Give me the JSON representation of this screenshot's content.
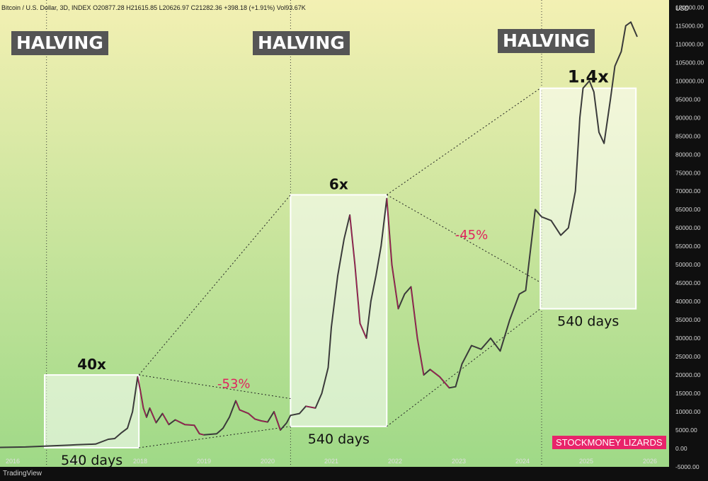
{
  "header": {
    "symbol_text": "Bitcoin / U.S. Dollar, 3D, INDEX",
    "ohlc_text": "O20877.28  H21615.85  L20626.97  C21282.36  +398.18 (+1.91%)  Vol93.67K",
    "currency": "USD"
  },
  "footer": {
    "platform": "TradingView"
  },
  "halving_labels": [
    "HALVING",
    "HALVING",
    "HALVING"
  ],
  "branding": "STOCKMONEY LIZARDS",
  "colors": {
    "background_top": "#f3f0b3",
    "background_bottom": "#9fd987",
    "price_line": "#3a3a3a",
    "correction_line": "#c0185a",
    "percent_text": "#e0245e",
    "box_fill": "#ffffff",
    "axis_bg": "#0f0f0f",
    "brand": "#e8246a"
  },
  "chart_data": {
    "type": "line",
    "title": "",
    "ylabel": "",
    "xlabel": "",
    "x_ticks": [
      "2016",
      "2017",
      "2018",
      "2019",
      "2020",
      "2021",
      "2022",
      "2023",
      "2024",
      "2025",
      "2026"
    ],
    "y_ticks": [
      "120000.00",
      "115000.00",
      "110000.00",
      "105000.00",
      "100000.00",
      "95000.00",
      "90000.00",
      "85000.00",
      "80000.00",
      "75000.00",
      "70000.00",
      "65000.00",
      "60000.00",
      "55000.00",
      "50000.00",
      "45000.00",
      "40000.00",
      "35000.00",
      "30000.00",
      "25000.00",
      "20000.00",
      "15000.00",
      "10000.00",
      "5000.00",
      "0.00",
      "-5000.00"
    ],
    "ylim": [
      -5000,
      122000
    ],
    "xlim": [
      2015.8,
      2026.3
    ],
    "halving_dates": [
      2016.53,
      2020.36,
      2024.3
    ],
    "grid": false,
    "series": [
      {
        "name": "",
        "points": [
          [
            2015.8,
            300
          ],
          [
            2016.2,
            400
          ],
          [
            2016.53,
            650
          ],
          [
            2016.9,
            900
          ],
          [
            2017.0,
            1000
          ],
          [
            2017.3,
            1200
          ],
          [
            2017.5,
            2500
          ],
          [
            2017.6,
            2700
          ],
          [
            2017.7,
            4200
          ],
          [
            2017.8,
            5500
          ],
          [
            2017.88,
            10000
          ],
          [
            2017.96,
            19500
          ],
          [
            2018.0,
            16000
          ],
          [
            2018.05,
            11000
          ],
          [
            2018.1,
            8500
          ],
          [
            2018.15,
            11000
          ],
          [
            2018.25,
            7000
          ],
          [
            2018.35,
            9500
          ],
          [
            2018.45,
            6500
          ],
          [
            2018.55,
            7800
          ],
          [
            2018.7,
            6500
          ],
          [
            2018.85,
            6300
          ],
          [
            2018.93,
            4000
          ],
          [
            2019.0,
            3700
          ],
          [
            2019.2,
            4000
          ],
          [
            2019.3,
            5500
          ],
          [
            2019.4,
            8500
          ],
          [
            2019.5,
            13000
          ],
          [
            2019.56,
            10500
          ],
          [
            2019.7,
            9500
          ],
          [
            2019.8,
            8000
          ],
          [
            2019.9,
            7500
          ],
          [
            2020.0,
            7200
          ],
          [
            2020.1,
            10000
          ],
          [
            2020.2,
            5000
          ],
          [
            2020.3,
            7000
          ],
          [
            2020.36,
            9000
          ],
          [
            2020.5,
            9500
          ],
          [
            2020.6,
            11500
          ],
          [
            2020.75,
            11000
          ],
          [
            2020.85,
            15000
          ],
          [
            2020.95,
            22000
          ],
          [
            2021.0,
            33000
          ],
          [
            2021.1,
            47000
          ],
          [
            2021.2,
            57000
          ],
          [
            2021.29,
            63500
          ],
          [
            2021.37,
            50000
          ],
          [
            2021.45,
            34000
          ],
          [
            2021.55,
            30000
          ],
          [
            2021.62,
            40000
          ],
          [
            2021.7,
            47000
          ],
          [
            2021.78,
            55000
          ],
          [
            2021.87,
            68000
          ],
          [
            2021.95,
            50000
          ],
          [
            2022.05,
            38000
          ],
          [
            2022.15,
            42000
          ],
          [
            2022.25,
            44000
          ],
          [
            2022.35,
            30000
          ],
          [
            2022.45,
            20000
          ],
          [
            2022.55,
            21500
          ],
          [
            2022.7,
            19500
          ],
          [
            2022.85,
            16500
          ],
          [
            2022.95,
            16800
          ],
          [
            2023.05,
            23000
          ],
          [
            2023.2,
            28000
          ],
          [
            2023.35,
            27000
          ],
          [
            2023.5,
            30000
          ],
          [
            2023.65,
            26500
          ],
          [
            2023.8,
            35000
          ],
          [
            2023.95,
            42000
          ],
          [
            2024.05,
            43000
          ],
          [
            2024.2,
            65000
          ],
          [
            2024.3,
            63000
          ],
          [
            2024.45,
            62000
          ],
          [
            2024.6,
            58000
          ],
          [
            2024.72,
            60000
          ],
          [
            2024.83,
            70000
          ],
          [
            2024.9,
            90000
          ],
          [
            2024.95,
            98000
          ],
          [
            2025.05,
            100000
          ],
          [
            2025.12,
            97000
          ],
          [
            2025.2,
            86000
          ],
          [
            2025.28,
            83000
          ],
          [
            2025.38,
            95000
          ],
          [
            2025.45,
            104000
          ],
          [
            2025.55,
            108000
          ],
          [
            2025.62,
            115000
          ],
          [
            2025.7,
            116000
          ],
          [
            2025.8,
            112000
          ]
        ]
      }
    ],
    "cycle_boxes": [
      {
        "x0": 2016.5,
        "x1": 2017.98,
        "y0": 200,
        "y1": 20000,
        "gain_label": "40x",
        "days_label": "540 days"
      },
      {
        "x0": 2020.36,
        "x1": 2021.87,
        "y0": 6000,
        "y1": 69000,
        "gain_label": "6x",
        "days_label": "540 days"
      },
      {
        "x0": 2024.28,
        "x1": 2025.78,
        "y0": 38000,
        "y1": 98000,
        "gain_label": "1.4x",
        "days_label": "540 days"
      }
    ],
    "drawdown_labels": [
      {
        "text": "-53%",
        "x": 2019.47,
        "y": 16500
      },
      {
        "text": "-45%",
        "x": 2023.2,
        "y": 57000
      }
    ]
  }
}
